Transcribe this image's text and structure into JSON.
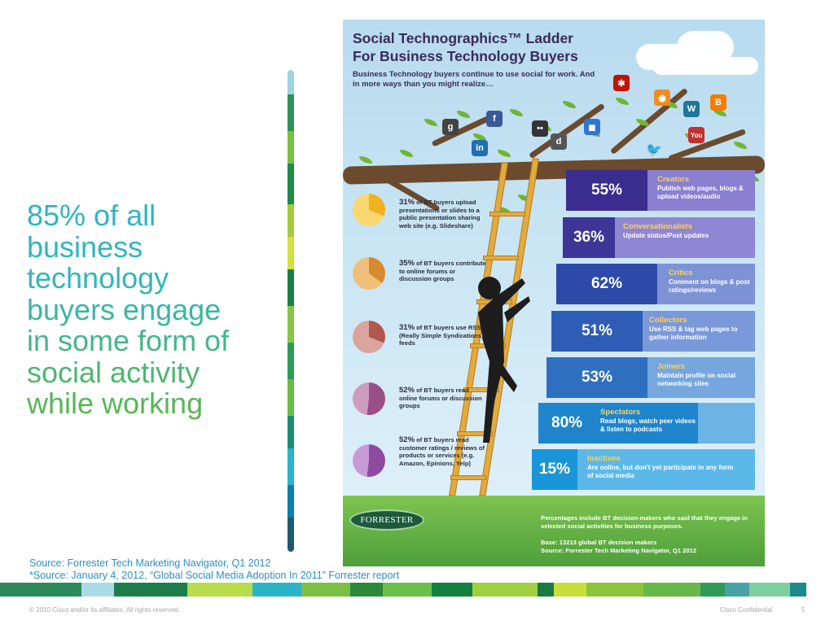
{
  "headline": {
    "lines": [
      "85% of all",
      "business",
      "technology",
      "buyers engage",
      "in some form of",
      "social activity",
      "while working"
    ]
  },
  "infographic": {
    "title_line1": "Social Technographics™ Ladder",
    "title_line2": "For Business Technology Buyers",
    "subtitle": "Business Technology buyers continue to use social for work. And in more ways than you might realize…",
    "social_icons": [
      {
        "name": "google-icon",
        "glyph": "g",
        "color": "#444444"
      },
      {
        "name": "facebook-icon",
        "glyph": "f",
        "color": "#3b5998"
      },
      {
        "name": "linkedin-icon",
        "glyph": "in",
        "color": "#1f6fb2"
      },
      {
        "name": "flickr-icon",
        "glyph": "••",
        "color": "#333333"
      },
      {
        "name": "digg-icon",
        "glyph": "d",
        "color": "#555555"
      },
      {
        "name": "delicious-icon",
        "glyph": "◼",
        "color": "#3274d1"
      },
      {
        "name": "yelp-icon",
        "glyph": "✱",
        "color": "#c41200"
      },
      {
        "name": "rss-icon",
        "glyph": "◉",
        "color": "#f08a24"
      },
      {
        "name": "wordpress-icon",
        "glyph": "W",
        "color": "#21759b"
      },
      {
        "name": "blogger-icon",
        "glyph": "B",
        "color": "#f57d00"
      },
      {
        "name": "youtube-icon",
        "glyph": "You",
        "color": "#c4302b"
      },
      {
        "name": "twitter-bird-icon",
        "glyph": "🐦",
        "color": "#4db6e8"
      }
    ],
    "bars": [
      {
        "percent": "55%",
        "category": "Creators",
        "desc": "Publish web pages, blogs & upload videos/audio",
        "dark": "#3b2c8f",
        "light": "#8a7fd0"
      },
      {
        "percent": "36%",
        "category": "Conversationalists",
        "desc": "Update status/Post updates",
        "dark": "#3d3597",
        "light": "#8f86d3"
      },
      {
        "percent": "62%",
        "category": "Critics",
        "desc": "Comment on blogs & post ratings/reviews",
        "dark": "#2e4aa8",
        "light": "#7e93d6"
      },
      {
        "percent": "51%",
        "category": "Collectors",
        "desc": "Use RSS & tag web pages to gather information",
        "dark": "#2f5cb5",
        "light": "#7a99db"
      },
      {
        "percent": "53%",
        "category": "Joiners",
        "desc": "Maintain profile on social networking sites",
        "dark": "#2e6fc0",
        "light": "#75a6de"
      },
      {
        "percent": "80%",
        "category": "Spectators",
        "desc": "Read blogs, watch peer videos & listen to podcasts",
        "dark": "#1e85cc",
        "light": "#6bb4e4"
      },
      {
        "percent": "15%",
        "category": "Inactives",
        "desc": "Are online, but don't yet participate in any form of social media",
        "dark": "#1a96d8",
        "light": "#5cb8e8"
      }
    ],
    "pies": [
      {
        "percent": "31%",
        "text": "of BT buyers upload presentations or slides to a public presentation sharing web site (e.g. Slideshare)",
        "fill": "#f2b11e",
        "base": "#fbd671"
      },
      {
        "percent": "35%",
        "text": "of BT buyers contribute to online forums or discussion groups",
        "fill": "#d88a2e",
        "base": "#f0c07a"
      },
      {
        "percent": "31%",
        "text": "of BT buyers use RSS (Really Simple Syndications) feeds",
        "fill": "#b0574f",
        "base": "#dba49c"
      },
      {
        "percent": "52%",
        "text": "of BT buyers read online forums or discussion groups",
        "fill": "#9a4f86",
        "base": "#cf9cc1"
      },
      {
        "percent": "52%",
        "text": "of BT buyers read customer ratings / reviews of products or services (e.g. Amazon, Epinions, Yelp)",
        "fill": "#8d4aa0",
        "base": "#c89ad6"
      }
    ],
    "forrester_logo": "FORRESTER",
    "footnote1": "Percentages include BT decision-makers who said that they engage in selected social activities for business purposes.",
    "footnote2": "Base: 13213 global BT decision makers",
    "footnote3": "Source: Forrester Tech Marketing Navigator, Q1 2012"
  },
  "source": {
    "line1": "Source: Forrester Tech Marketing Navigator, Q1 2012",
    "line2": "*Source: January 4, 2012, “Global Social Media Adoption In 2011” Forrester report"
  },
  "footer": {
    "copyright": "© 2010 Cisco and/or its affiliates. All rights reserved.",
    "confidential": "Cisco Confidential",
    "page": "5"
  },
  "colors": {
    "accent_teal": "#2ab4c7",
    "accent_green": "#5bb649",
    "source_blue": "#2a8fc7"
  }
}
